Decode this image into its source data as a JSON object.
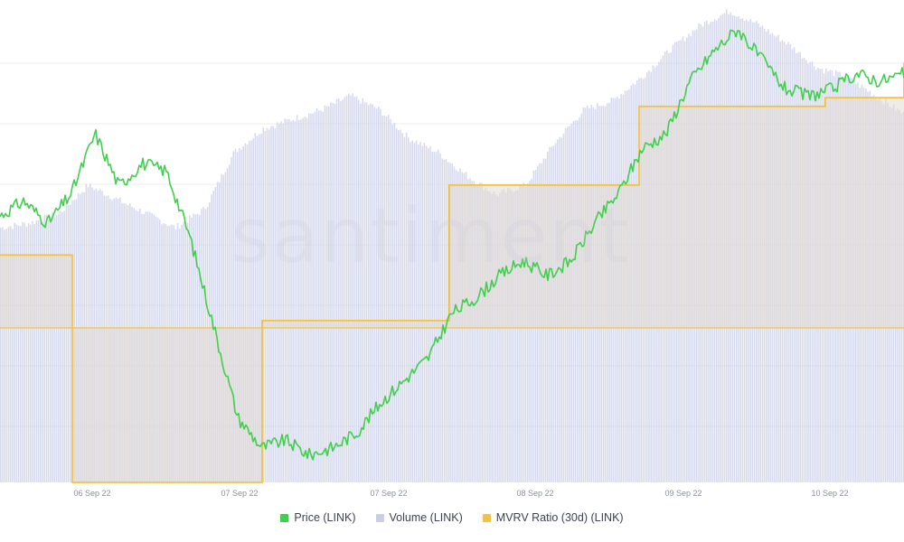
{
  "watermark": "santiment",
  "colors": {
    "price": "#3fcf4c",
    "volume": "#c9cde6",
    "mvrv": "#f3c244",
    "grid": "#eceef2",
    "overlap": "#e2dad3"
  },
  "legend": [
    {
      "label": "Price (LINK)",
      "color": "#3fcf4c"
    },
    {
      "label": "Volume (LINK)",
      "color": "#c9cde6"
    },
    {
      "label": "MVRV Ratio (30d) (LINK)",
      "color": "#f3c244"
    }
  ],
  "chart_data": {
    "type": "line",
    "title": "",
    "x_start": "05 Sep 22 12:00",
    "x_end": "10 Sep 22 18:00",
    "x_tick_labels": [
      "06 Sep 22",
      "07 Sep 22",
      "07 Sep 22",
      "08 Sep 22",
      "09 Sep 22",
      "10 Sep 22"
    ],
    "grid": true,
    "legend_placement": "bottom-center",
    "y_axes_visible": false,
    "series": [
      {
        "name": "Price (LINK)",
        "kind": "line",
        "values": [
          0.77,
          0.79,
          0.76,
          0.8,
          0.88,
          0.81,
          0.84,
          0.83,
          0.74,
          0.62,
          0.5,
          0.46,
          0.47,
          0.45,
          0.46,
          0.48,
          0.52,
          0.55,
          0.58,
          0.64,
          0.66,
          0.69,
          0.71,
          0.69,
          0.71,
          0.76,
          0.8,
          0.86,
          0.88,
          0.95,
          0.99,
          1.02,
          0.98,
          0.94,
          0.93,
          0.94,
          0.96,
          0.95,
          0.96
        ]
      },
      {
        "name": "Volume (LINK)",
        "kind": "bar",
        "values": [
          0.54,
          0.55,
          0.57,
          0.63,
          0.6,
          0.57,
          0.54,
          0.58,
          0.7,
          0.75,
          0.77,
          0.79,
          0.82,
          0.79,
          0.73,
          0.7,
          0.65,
          0.61,
          0.63,
          0.72,
          0.79,
          0.81,
          0.86,
          0.92,
          0.97,
          1.0,
          0.97,
          0.93,
          0.88,
          0.86,
          0.82,
          0.78
        ]
      },
      {
        "name": "MVRV Ratio (30d) (LINK)",
        "kind": "step",
        "values": [
          0.52,
          0.0,
          0.37,
          0.68,
          0.86,
          0.88,
          0.96
        ]
      }
    ]
  }
}
